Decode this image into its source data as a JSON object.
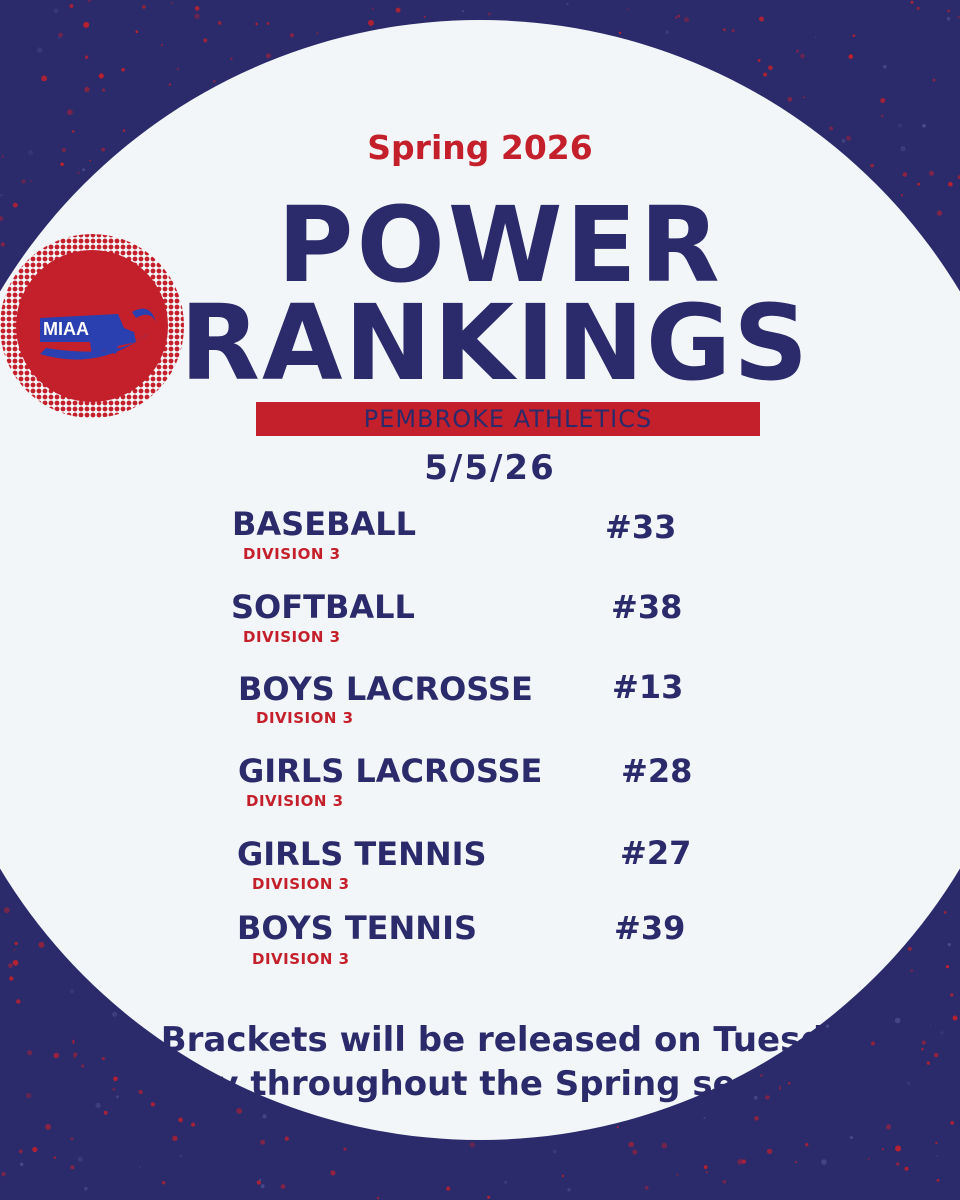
{
  "header": {
    "season": "Spring 2026",
    "title_line1": "POWER",
    "title_line2": "RANKINGS",
    "banner": "PEMBROKE ATHLETICS",
    "date": "5/5/26"
  },
  "logo": {
    "text": "MIAA",
    "icon": "massachusetts-map-logo"
  },
  "rankings": [
    {
      "sport": "BASEBALL",
      "division": "DIVISION 3",
      "rank": "#33"
    },
    {
      "sport": "SOFTBALL",
      "division": "DIVISION 3",
      "rank": "#38"
    },
    {
      "sport": "BOYS LACROSSE",
      "division": "DIVISION 3",
      "rank": "#13"
    },
    {
      "sport": "GIRLS LACROSSE",
      "division": "DIVISION 3",
      "rank": "#28"
    },
    {
      "sport": "GIRLS TENNIS",
      "division": "DIVISION 3",
      "rank": "#27"
    },
    {
      "sport": "BOYS TENNIS",
      "division": "DIVISION 3",
      "rank": "#39"
    }
  ],
  "footer": "MIAA Brackets will be released on Tuesday & Friday throughout the Spring season.",
  "colors": {
    "navy": "#2b2a6b",
    "red": "#c4202b",
    "background": "#f3f6f8"
  }
}
